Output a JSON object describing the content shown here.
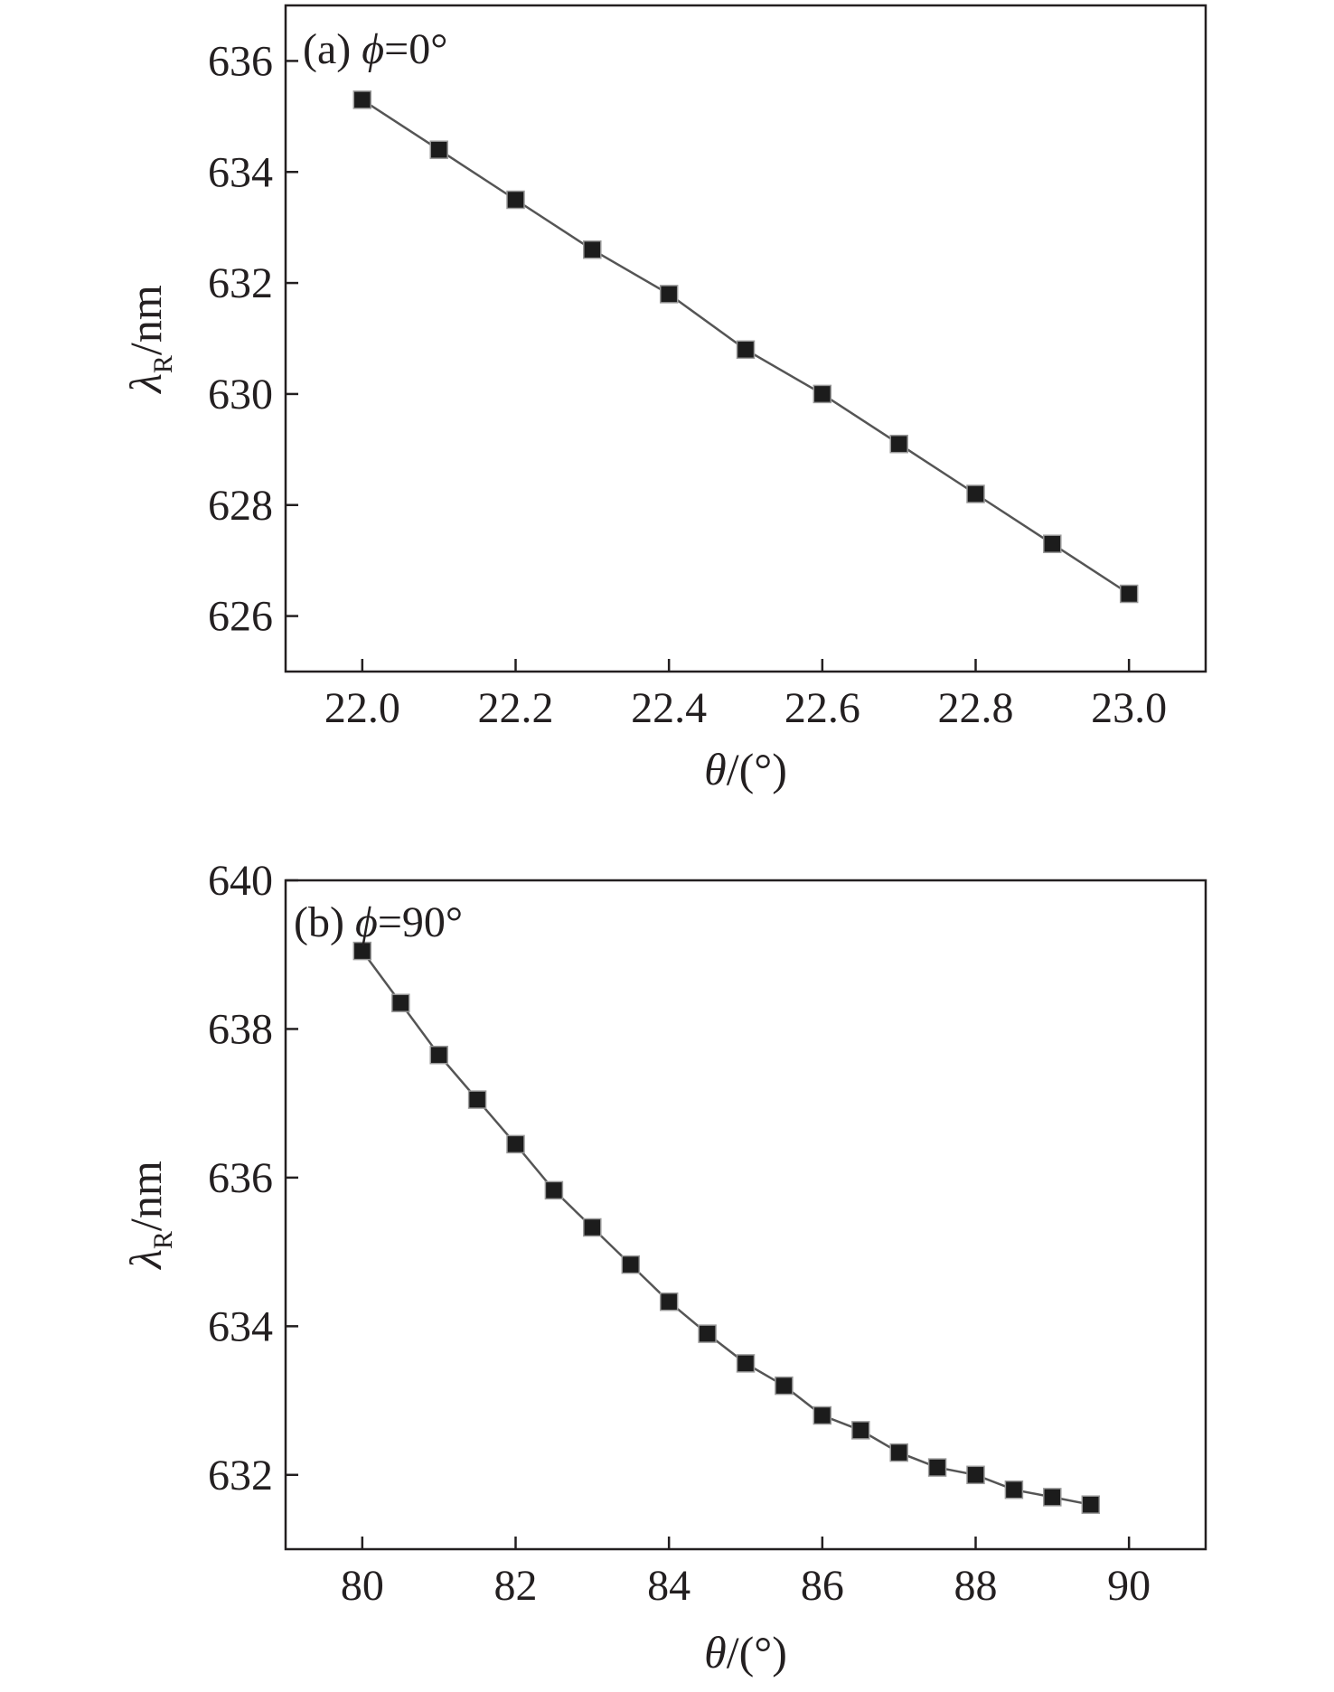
{
  "chart_data": [
    {
      "type": "line",
      "panel_label": {
        "prefix": "(a) ",
        "symbol": "ϕ",
        "suffix": "=0°"
      },
      "xlabel": {
        "symbol": "θ",
        "suffix": "/(°)"
      },
      "ylabel": {
        "symbol": "λ",
        "subscript": "R",
        "suffix": "/nm"
      },
      "xlim": [
        21.9,
        23.1
      ],
      "ylim": [
        625.0,
        637.0
      ],
      "xticks": [
        22.0,
        22.2,
        22.4,
        22.6,
        22.8,
        23.0
      ],
      "xtick_labels": [
        "22.0",
        "22.2",
        "22.4",
        "22.6",
        "22.8",
        "23.0"
      ],
      "yticks": [
        626,
        628,
        630,
        632,
        634,
        636
      ],
      "ytick_labels": [
        "626",
        "628",
        "630",
        "632",
        "634",
        "636"
      ],
      "grid": false,
      "marker": "square",
      "x": [
        22.0,
        22.1,
        22.2,
        22.3,
        22.4,
        22.5,
        22.6,
        22.7,
        22.8,
        22.9,
        23.0
      ],
      "y": [
        635.3,
        634.4,
        633.5,
        632.6,
        631.8,
        630.8,
        630.0,
        629.1,
        628.2,
        627.3,
        626.4
      ]
    },
    {
      "type": "line",
      "panel_label": {
        "prefix": "(b) ",
        "symbol": "ϕ",
        "suffix": "=90°"
      },
      "xlabel": {
        "symbol": "θ",
        "suffix": "/(°)"
      },
      "ylabel": {
        "symbol": "λ",
        "subscript": "R",
        "suffix": "/nm"
      },
      "xlim": [
        79.0,
        91.0
      ],
      "ylim": [
        631.0,
        640.0
      ],
      "xticks": [
        80,
        82,
        84,
        86,
        88,
        90
      ],
      "xtick_labels": [
        "80",
        "82",
        "84",
        "86",
        "88",
        "90"
      ],
      "yticks": [
        632,
        634,
        636,
        638,
        640
      ],
      "ytick_labels": [
        "632",
        "634",
        "636",
        "638",
        "640"
      ],
      "grid": false,
      "marker": "square",
      "x": [
        80.0,
        80.5,
        81.0,
        81.5,
        82.0,
        82.5,
        83.0,
        83.5,
        84.0,
        84.5,
        85.0,
        85.5,
        86.0,
        86.5,
        87.0,
        87.5,
        88.0,
        88.5,
        89.0,
        89.5
      ],
      "y": [
        639.05,
        638.35,
        637.65,
        637.05,
        636.45,
        635.83,
        635.33,
        634.83,
        634.33,
        633.9,
        633.5,
        633.2,
        632.8,
        632.6,
        632.3,
        632.1,
        632.0,
        631.8,
        631.7,
        631.6
      ]
    }
  ],
  "colors": {
    "ink": "#231f20",
    "marker_fill": "#1c1c1c",
    "background": "#ffffff"
  }
}
